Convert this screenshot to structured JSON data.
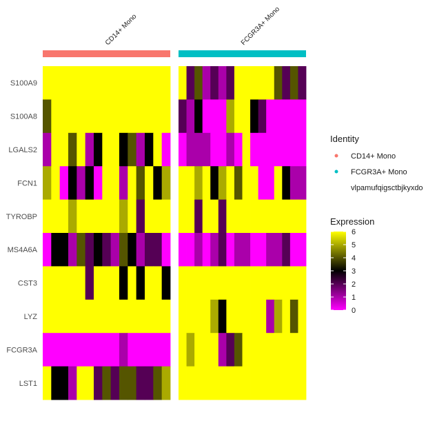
{
  "chart_data": {
    "type": "heatmap",
    "groups": [
      {
        "name": "CD14+ Mono",
        "color": "#F8766D"
      },
      {
        "name": "FCGR3A+ Mono",
        "color": "#00BFC4"
      }
    ],
    "genes": [
      "S100A9",
      "S100A8",
      "LGALS2",
      "FCN1",
      "TYROBP",
      "MS4A6A",
      "CST3",
      "LYZ",
      "FCGR3A",
      "LST1"
    ],
    "color_scale": {
      "low": "#FF00FF",
      "mid": "#000000",
      "high": "#FFFF00",
      "midpoint": 3,
      "limits": [
        0,
        6
      ]
    },
    "values": {
      "CD14+ Mono": [
        [
          6,
          6,
          6,
          6,
          6,
          6,
          6,
          6,
          6,
          6,
          6,
          6,
          6,
          6,
          6
        ],
        [
          4,
          6,
          6,
          6,
          6,
          6,
          6,
          6,
          6,
          6,
          6,
          6,
          6,
          6,
          6
        ],
        [
          1,
          6,
          6,
          4,
          6,
          1,
          3,
          6,
          6,
          3,
          4,
          1,
          3,
          6,
          0
        ],
        [
          5,
          6,
          0,
          3,
          1,
          3,
          0,
          6,
          6,
          1,
          6,
          4,
          6,
          3,
          5
        ],
        [
          6,
          6,
          6,
          5,
          6,
          6,
          6,
          6,
          6,
          5,
          6,
          2,
          6,
          6,
          6
        ],
        [
          0,
          3,
          3,
          1,
          4,
          2,
          3,
          2,
          1,
          4,
          3,
          1,
          2,
          2,
          0
        ],
        [
          6,
          6,
          6,
          6,
          6,
          2,
          6,
          6,
          6,
          3,
          6,
          3,
          6,
          6,
          3
        ],
        [
          6,
          6,
          6,
          6,
          6,
          6,
          6,
          6,
          6,
          6,
          6,
          6,
          6,
          6,
          6
        ],
        [
          0,
          0,
          0,
          0,
          0,
          0,
          0,
          0,
          0,
          1,
          0,
          0,
          0,
          0,
          0
        ],
        [
          6,
          3,
          3,
          1,
          6,
          6,
          2,
          4,
          2,
          4,
          4,
          2,
          2,
          4,
          5
        ]
      ],
      "FCGR3A+ Mono": [
        [
          6,
          2,
          4,
          1,
          2,
          1,
          2,
          6,
          6,
          6,
          6,
          6,
          4,
          2,
          4,
          2
        ],
        [
          2,
          1,
          3,
          0,
          0,
          0,
          5,
          6,
          6,
          3,
          2,
          0,
          0,
          0,
          0,
          0
        ],
        [
          0,
          1,
          1,
          1,
          0,
          0,
          1,
          0,
          6,
          0,
          0,
          0,
          0,
          0,
          0,
          0
        ],
        [
          6,
          6,
          5,
          6,
          3,
          5,
          6,
          4,
          6,
          6,
          0,
          0,
          6,
          3,
          1,
          1
        ],
        [
          6,
          6,
          2,
          6,
          6,
          2,
          6,
          6,
          6,
          6,
          6,
          6,
          6,
          6,
          6,
          6
        ],
        [
          0,
          0,
          1,
          0,
          1,
          2,
          0,
          1,
          1,
          0,
          0,
          1,
          1,
          2,
          0,
          0
        ],
        [
          6,
          6,
          6,
          6,
          6,
          6,
          6,
          6,
          6,
          6,
          6,
          6,
          6,
          6,
          6,
          6
        ],
        [
          6,
          6,
          6,
          6,
          5,
          3,
          6,
          6,
          6,
          6,
          6,
          1,
          5,
          6,
          4,
          6
        ],
        [
          6,
          5,
          6,
          6,
          6,
          1,
          2,
          4,
          6,
          6,
          6,
          6,
          6,
          6,
          6,
          6
        ],
        [
          6,
          6,
          6,
          6,
          6,
          6,
          6,
          6,
          6,
          6,
          6,
          6,
          6,
          6,
          6,
          6
        ]
      ]
    },
    "legend": {
      "identity_title": "Identity",
      "identity_items": [
        {
          "label": "CD14+ Mono",
          "color": "#F8766D"
        },
        {
          "label": "FCGR3A+ Mono",
          "color": "#00BFC4"
        },
        {
          "label": "vlpamufqigsctbjkyxdo",
          "color": "#FFFFFF"
        }
      ],
      "expression_title": "Expression",
      "expression_ticks": [
        0,
        1,
        2,
        3,
        4,
        5,
        6
      ]
    }
  }
}
